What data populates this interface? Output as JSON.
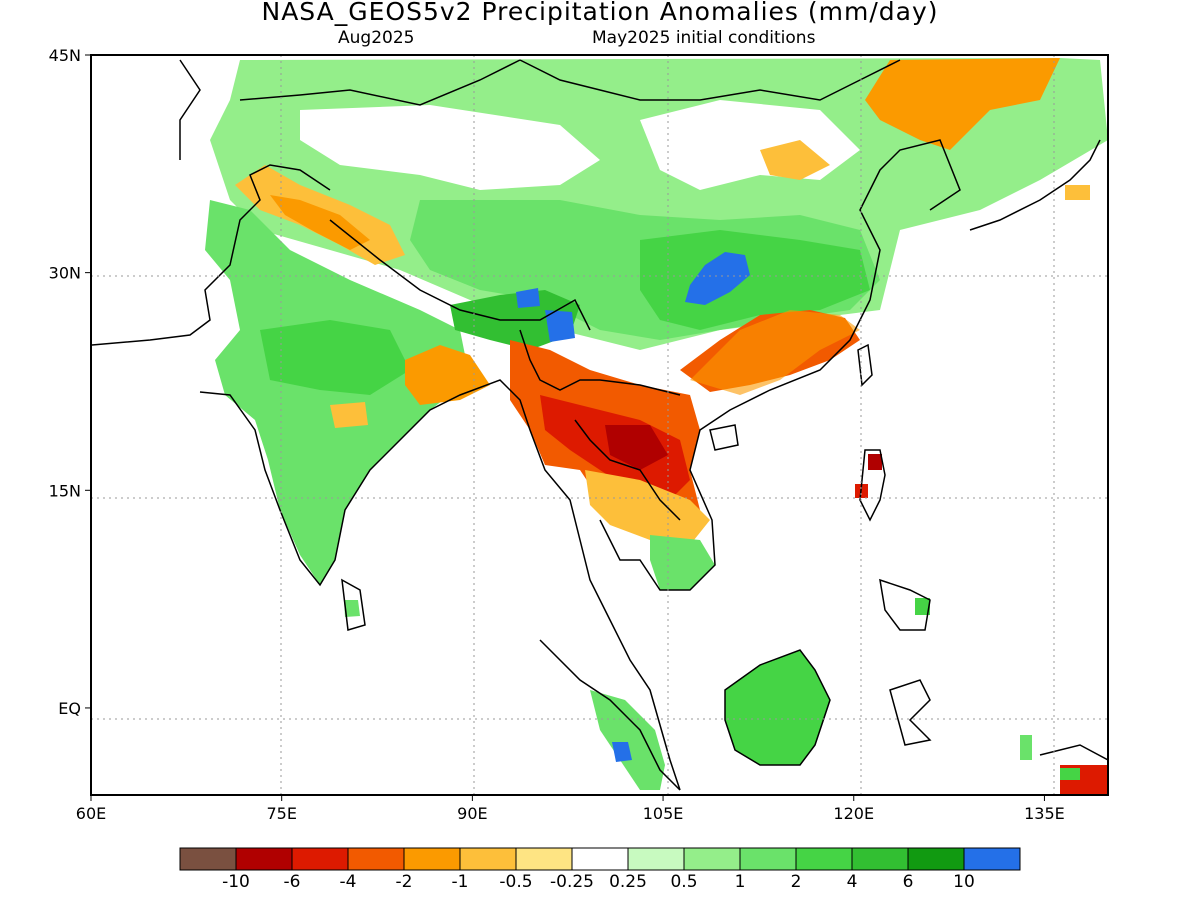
{
  "title": "NASA_GEOS5v2 Precipitation Anomalies (mm/day)",
  "subtitle_left": "Aug2025",
  "subtitle_right": "May2025 initial conditions",
  "map": {
    "lon_range": [
      60,
      140
    ],
    "lat_range": [
      -6,
      45
    ],
    "lon_ticks": [
      {
        "v": 60,
        "label": "60E"
      },
      {
        "v": 75,
        "label": "75E"
      },
      {
        "v": 90,
        "label": "90E"
      },
      {
        "v": 105,
        "label": "105E"
      },
      {
        "v": 120,
        "label": "120E"
      },
      {
        "v": 135,
        "label": "135E"
      }
    ],
    "lat_ticks": [
      {
        "v": 45,
        "label": "45N"
      },
      {
        "v": 30,
        "label": "30N"
      },
      {
        "v": 15,
        "label": "15N"
      },
      {
        "v": 0,
        "label": "EQ"
      }
    ],
    "grid": "dotted"
  },
  "colorbar": {
    "colors": [
      "#7a5040",
      "#b00000",
      "#dd1a00",
      "#f25a00",
      "#fb9a00",
      "#fdbf3a",
      "#fee483",
      "#ffffff",
      "#c8fac0",
      "#94ee8a",
      "#6ae26a",
      "#45d445",
      "#32bf32",
      "#119a11",
      "#2470e8"
    ],
    "labels": [
      "-10",
      "-6",
      "-4",
      "-2",
      "-1",
      "-0.5",
      "-0.25",
      "0.25",
      "0.5",
      "1",
      "2",
      "4",
      "6",
      "10"
    ]
  },
  "anomaly_regions": [
    {
      "name": "northern-china-mongolia",
      "value": 1.5,
      "color": "#94ee8a"
    },
    {
      "name": "central-china",
      "value": 3,
      "color": "#6ae26a"
    },
    {
      "name": "yangtze-basin-core",
      "value": 12,
      "color": "#2470e8"
    },
    {
      "name": "southern-china",
      "value": -3,
      "color": "#f25a00"
    },
    {
      "name": "northeast-china-korea",
      "value": -1.5,
      "color": "#fb9a00"
    },
    {
      "name": "tibetan-plateau",
      "value": 2,
      "color": "#45d445"
    },
    {
      "name": "western-himalaya",
      "value": -1,
      "color": "#fdbf3a"
    },
    {
      "name": "india",
      "value": 1.5,
      "color": "#6ae26a"
    },
    {
      "name": "northeast-india",
      "value": 5,
      "color": "#32bf32"
    },
    {
      "name": "bangladesh",
      "value": -1,
      "color": "#fb9a00"
    },
    {
      "name": "myanmar-thailand-laos",
      "value": -5,
      "color": "#dd1a00"
    },
    {
      "name": "cambodia-vietnam",
      "value": -1.5,
      "color": "#fb9a00"
    },
    {
      "name": "borneo",
      "value": 2,
      "color": "#45d445"
    },
    {
      "name": "sumatra",
      "value": 1,
      "color": "#6ae26a"
    },
    {
      "name": "philippines-luzon",
      "value": -6,
      "color": "#b00000"
    },
    {
      "name": "papua",
      "value": -6,
      "color": "#dd1a00"
    }
  ]
}
